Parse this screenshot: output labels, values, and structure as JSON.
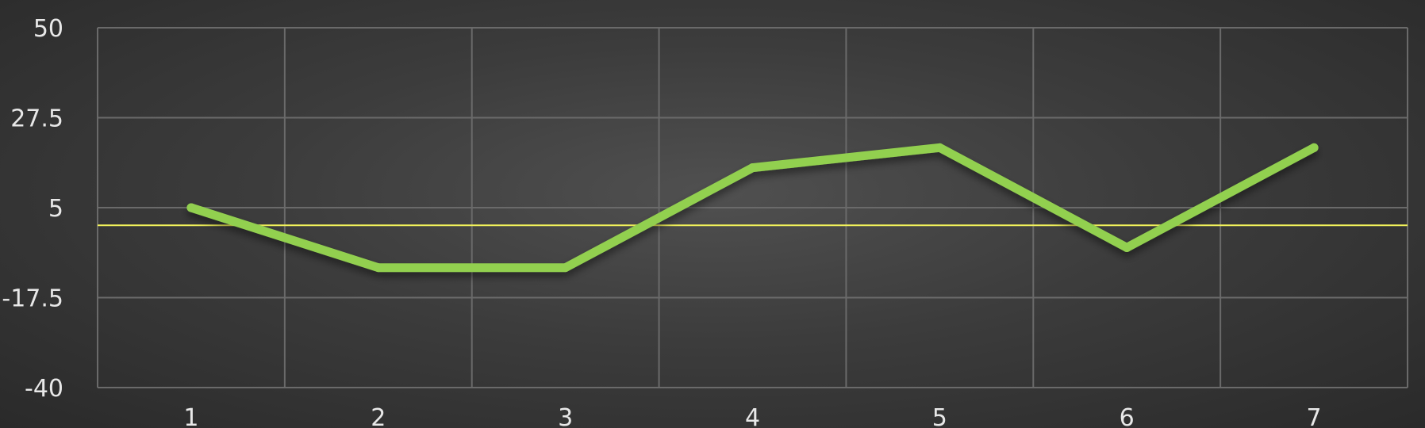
{
  "chart_data": {
    "type": "line",
    "x": [
      1,
      2,
      3,
      4,
      5,
      6,
      7
    ],
    "x_tick_labels": [
      "1",
      "2",
      "3",
      "4",
      "5",
      "6",
      "7"
    ],
    "series": [
      {
        "values": [
          5,
          -10,
          -10,
          15,
          20,
          -5,
          20
        ],
        "color": "#92d050"
      }
    ],
    "reference_line": {
      "y": 0.6,
      "color": "#f2f25a"
    },
    "ylim": [
      -40,
      50
    ],
    "y_ticks": [
      50,
      27.5,
      5,
      -17.5,
      -40
    ],
    "y_tick_labels": [
      "50",
      "27.5",
      "5",
      "-17.5",
      "-40"
    ],
    "grid": true,
    "grid_color": "#6a6a6a",
    "background_color": "#3c3c3c",
    "title": "",
    "xlabel": "",
    "ylabel": ""
  }
}
